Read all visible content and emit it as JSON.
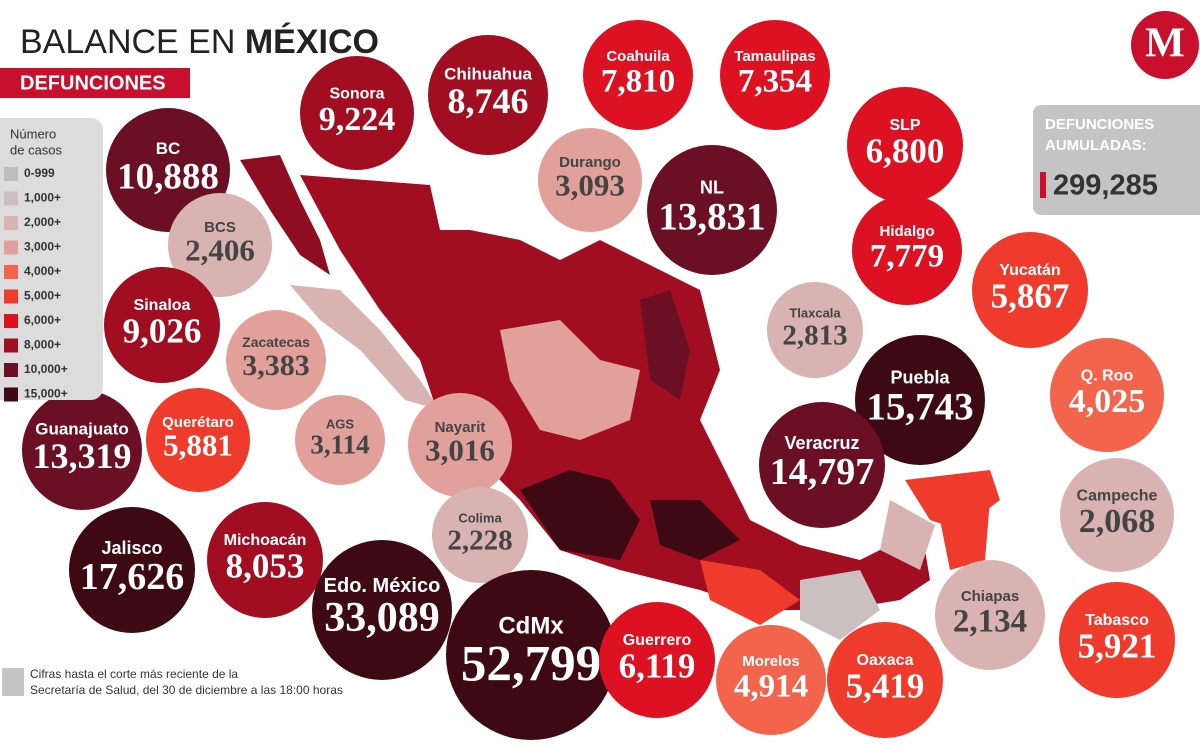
{
  "header": {
    "title_prefix": "BALANCE EN",
    "title_emphasis": "MÉXICO",
    "subtitle": "DEFUNCIONES",
    "logo": "M"
  },
  "legend": {
    "title_line1": "Número",
    "title_line2": "de casos",
    "items": [
      "0-999",
      "1,000+",
      "2,000+",
      "3,000+",
      "4,000+",
      "5,000+",
      "6,000+",
      "8,000+",
      "10,000+",
      "15,000+"
    ]
  },
  "total": {
    "label_line1": "DEFUNCIONES",
    "label_line2": "AUMULADAS:",
    "value": "299,285"
  },
  "states": [
    {
      "name": "Sonora",
      "value": "9,224"
    },
    {
      "name": "Chihuahua",
      "value": "8,746"
    },
    {
      "name": "Coahuila",
      "value": "7,810"
    },
    {
      "name": "Tamaulipas",
      "value": "7,354"
    },
    {
      "name": "SLP",
      "value": "6,800"
    },
    {
      "name": "BC",
      "value": "10,888"
    },
    {
      "name": "Durango",
      "value": "3,093"
    },
    {
      "name": "NL",
      "value": "13,831"
    },
    {
      "name": "Hidalgo",
      "value": "7,779"
    },
    {
      "name": "BCS",
      "value": "2,406"
    },
    {
      "name": "Yucatán",
      "value": "5,867"
    },
    {
      "name": "Tlaxcala",
      "value": "2,813"
    },
    {
      "name": "Sinaloa",
      "value": "9,026"
    },
    {
      "name": "Zacatecas",
      "value": "3,383"
    },
    {
      "name": "Puebla",
      "value": "15,743"
    },
    {
      "name": "Q. Roo",
      "value": "4,025"
    },
    {
      "name": "Guanajuato",
      "value": "13,319"
    },
    {
      "name": "Querétaro",
      "value": "5,881"
    },
    {
      "name": "AGS",
      "value": "3,114"
    },
    {
      "name": "Nayarit",
      "value": "3,016"
    },
    {
      "name": "Veracruz",
      "value": "14,797"
    },
    {
      "name": "Campeche",
      "value": "2,068"
    },
    {
      "name": "Colima",
      "value": "2,228"
    },
    {
      "name": "Jalisco",
      "value": "17,626"
    },
    {
      "name": "Michoacán",
      "value": "8,053"
    },
    {
      "name": "Edo. México",
      "value": "33,089"
    },
    {
      "name": "CdMx",
      "value": "52,799"
    },
    {
      "name": "Chiapas",
      "value": "2,134"
    },
    {
      "name": "Tabasco",
      "value": "5,921"
    },
    {
      "name": "Guerrero",
      "value": "6,119"
    },
    {
      "name": "Morelos",
      "value": "4,914"
    },
    {
      "name": "Oaxaca",
      "value": "5,419"
    }
  ],
  "footnote": {
    "line1": "Cifras hasta el corte más reciente de la",
    "line2": "Secretaría de Salud, del 30 de diciembre a las 18:00 horas"
  }
}
